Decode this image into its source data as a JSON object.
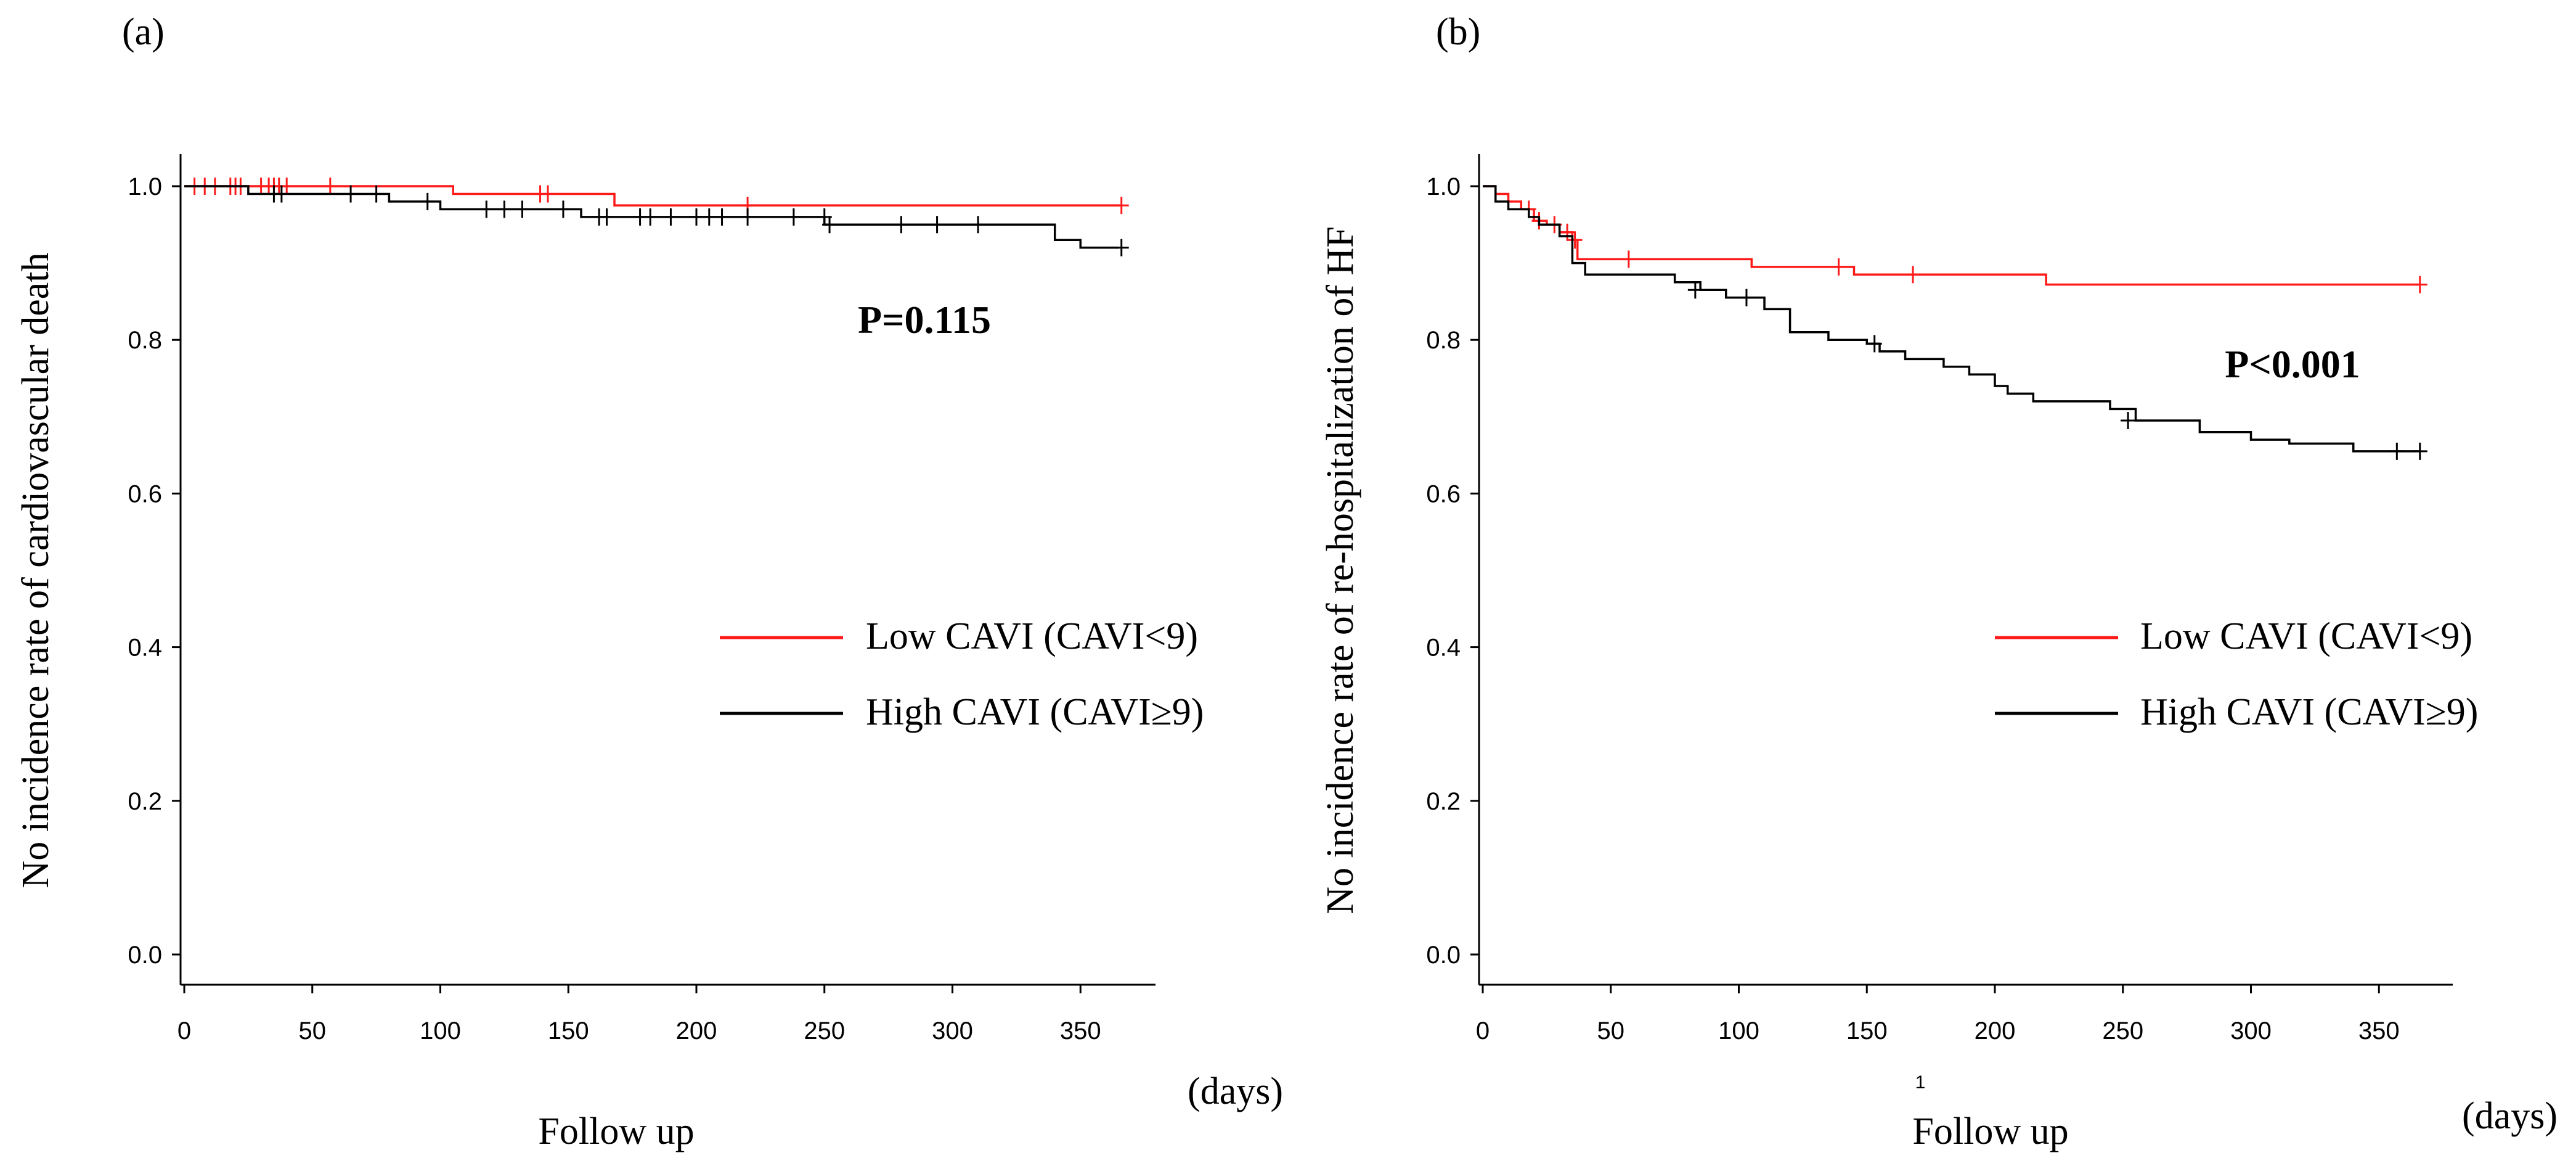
{
  "colors": {
    "low": "#ff1a1a",
    "high": "#000000",
    "axis": "#000000"
  },
  "chart_data": [
    {
      "type": "line",
      "subtype": "kaplan-meier",
      "panel_label": "(a)",
      "xlabel": "Follow up",
      "x_unit": "(days)",
      "ylabel": "No incidence rate of cardiovascular death",
      "xlim": [
        0,
        380
      ],
      "ylim": [
        -0.04,
        1.04
      ],
      "x_ticks": [
        0,
        50,
        100,
        150,
        200,
        250,
        300,
        350
      ],
      "y_ticks": [
        0.0,
        0.2,
        0.4,
        0.6,
        0.8,
        1.0
      ],
      "grid": false,
      "legend_position": "center-right",
      "annotation": "P=0.115",
      "series": [
        {
          "key": "low",
          "name": "Low CAVI (CAVI<9)",
          "steps": [
            [
              0,
              1.0
            ],
            [
              105,
              0.99
            ],
            [
              168,
              0.975
            ],
            [
              366,
              0.975
            ]
          ],
          "censors": [
            [
              4,
              1.0
            ],
            [
              8,
              1.0
            ],
            [
              12,
              1.0
            ],
            [
              18,
              1.0
            ],
            [
              20,
              1.0
            ],
            [
              22,
              1.0
            ],
            [
              30,
              1.0
            ],
            [
              33,
              1.0
            ],
            [
              35,
              1.0
            ],
            [
              37,
              1.0
            ],
            [
              40,
              1.0
            ],
            [
              57,
              1.0
            ],
            [
              139,
              0.99
            ],
            [
              142,
              0.99
            ],
            [
              220,
              0.975
            ],
            [
              366,
              0.975
            ]
          ]
        },
        {
          "key": "high",
          "name": "High CAVI (CAVI≥9)",
          "steps": [
            [
              0,
              1.0
            ],
            [
              25,
              0.99
            ],
            [
              80,
              0.98
            ],
            [
              100,
              0.97
            ],
            [
              155,
              0.96
            ],
            [
              250,
              0.95
            ],
            [
              340,
              0.93
            ],
            [
              350,
              0.92
            ],
            [
              365,
              0.92
            ]
          ],
          "censors": [
            [
              35,
              0.99
            ],
            [
              38,
              0.99
            ],
            [
              65,
              0.99
            ],
            [
              75,
              0.99
            ],
            [
              95,
              0.98
            ],
            [
              118,
              0.97
            ],
            [
              125,
              0.97
            ],
            [
              132,
              0.97
            ],
            [
              148,
              0.97
            ],
            [
              162,
              0.96
            ],
            [
              165,
              0.96
            ],
            [
              178,
              0.96
            ],
            [
              182,
              0.96
            ],
            [
              190,
              0.96
            ],
            [
              200,
              0.96
            ],
            [
              205,
              0.96
            ],
            [
              210,
              0.96
            ],
            [
              220,
              0.96
            ],
            [
              238,
              0.96
            ],
            [
              250,
              0.96
            ],
            [
              252,
              0.95
            ],
            [
              280,
              0.95
            ],
            [
              294,
              0.95
            ],
            [
              310,
              0.95
            ],
            [
              366,
              0.92
            ]
          ]
        }
      ]
    },
    {
      "type": "line",
      "subtype": "kaplan-meier",
      "panel_label": "(b)",
      "xlabel": "Follow up",
      "x_unit": "(days)",
      "stray_text": "1",
      "ylabel": "No incidence rate of re-hospitalization of HF",
      "xlim": [
        0,
        380
      ],
      "ylim": [
        -0.04,
        1.04
      ],
      "x_ticks": [
        0,
        50,
        100,
        150,
        200,
        250,
        300,
        350
      ],
      "y_ticks": [
        0.0,
        0.2,
        0.4,
        0.6,
        0.8,
        1.0
      ],
      "grid": false,
      "legend_position": "center-right",
      "annotation": "P<0.001",
      "series": [
        {
          "key": "low",
          "name": "Low CAVI (CAVI<9)",
          "steps": [
            [
              0,
              1.0
            ],
            [
              5,
              0.99
            ],
            [
              10,
              0.98
            ],
            [
              15,
              0.97
            ],
            [
              20,
              0.955
            ],
            [
              25,
              0.95
            ],
            [
              30,
              0.94
            ],
            [
              35,
              0.93
            ],
            [
              37,
              0.905
            ],
            [
              105,
              0.895
            ],
            [
              145,
              0.885
            ],
            [
              220,
              0.872
            ],
            [
              366,
              0.872
            ]
          ],
          "censors": [
            [
              18,
              0.97
            ],
            [
              22,
              0.955
            ],
            [
              28,
              0.95
            ],
            [
              33,
              0.94
            ],
            [
              36,
              0.93
            ],
            [
              57,
              0.905
            ],
            [
              139,
              0.895
            ],
            [
              168,
              0.885
            ],
            [
              366,
              0.872
            ]
          ]
        },
        {
          "key": "high",
          "name": "High CAVI (CAVI≥9)",
          "steps": [
            [
              0,
              1.0
            ],
            [
              5,
              0.98
            ],
            [
              10,
              0.97
            ],
            [
              18,
              0.96
            ],
            [
              22,
              0.95
            ],
            [
              30,
              0.935
            ],
            [
              35,
              0.9
            ],
            [
              40,
              0.885
            ],
            [
              75,
              0.875
            ],
            [
              85,
              0.865
            ],
            [
              95,
              0.855
            ],
            [
              110,
              0.84
            ],
            [
              120,
              0.81
            ],
            [
              135,
              0.8
            ],
            [
              150,
              0.795
            ],
            [
              155,
              0.785
            ],
            [
              165,
              0.775
            ],
            [
              180,
              0.765
            ],
            [
              190,
              0.755
            ],
            [
              200,
              0.74
            ],
            [
              205,
              0.73
            ],
            [
              215,
              0.72
            ],
            [
              245,
              0.71
            ],
            [
              255,
              0.695
            ],
            [
              280,
              0.68
            ],
            [
              300,
              0.67
            ],
            [
              315,
              0.665
            ],
            [
              340,
              0.655
            ],
            [
              366,
              0.655
            ]
          ],
          "censors": [
            [
              83,
              0.865
            ],
            [
              103,
              0.855
            ],
            [
              153,
              0.795
            ],
            [
              252,
              0.695
            ],
            [
              357,
              0.655
            ],
            [
              366,
              0.655
            ]
          ]
        }
      ]
    }
  ]
}
